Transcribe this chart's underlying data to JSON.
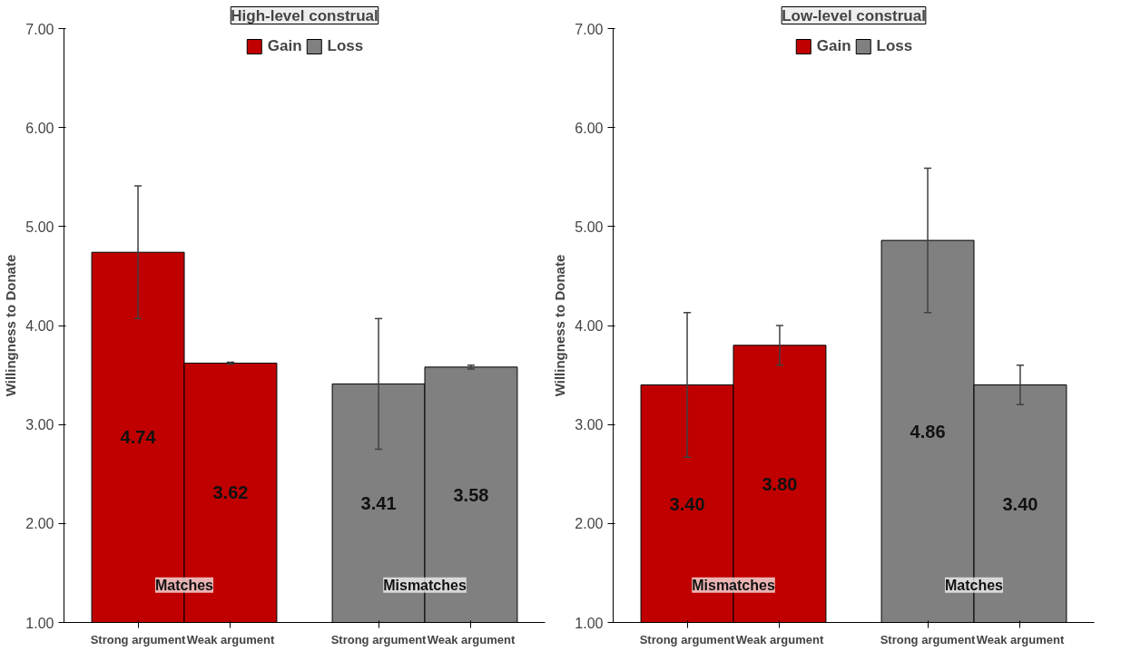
{
  "chart_data": [
    {
      "type": "bar",
      "subtitle": "High-level construal",
      "ylabel": "Willingness to Donate",
      "categories": [
        "Strong argument",
        "Weak argument",
        "Strong argument",
        "Weak argument"
      ],
      "ylim": [
        1,
        7
      ],
      "yticks": [
        {
          "value": 1,
          "label": "1.00"
        },
        {
          "value": 2,
          "label": "2.00"
        },
        {
          "value": 3,
          "label": "3.00"
        },
        {
          "value": 4,
          "label": "4.00"
        },
        {
          "value": 5,
          "label": "5.00"
        },
        {
          "value": 6,
          "label": "6.00"
        },
        {
          "value": 7,
          "label": "7.00"
        }
      ],
      "grid": false,
      "legend": "top",
      "annotations": [
        "Matches",
        "Mismatches"
      ],
      "series": [
        {
          "name": "Gain",
          "color": "#c00000",
          "values": [
            4.74,
            3.62,
            null,
            null
          ],
          "errors": [
            0.67,
            0.01,
            null,
            null
          ],
          "value_labels": [
            "4.74",
            "3.62",
            null,
            null
          ]
        },
        {
          "name": "Loss",
          "color": "#808080",
          "values": [
            null,
            null,
            3.41,
            3.58
          ],
          "errors": [
            null,
            null,
            0.66,
            0.02
          ],
          "value_labels": [
            null,
            null,
            "3.41",
            "3.58"
          ]
        }
      ]
    },
    {
      "type": "bar",
      "subtitle": "Low-level construal",
      "ylabel": "Willingness to Donate",
      "categories": [
        "Strong argument",
        "Weak argument",
        "Strong argument",
        "Weak argument"
      ],
      "ylim": [
        1,
        7
      ],
      "yticks": [
        {
          "value": 1,
          "label": "1.00"
        },
        {
          "value": 2,
          "label": "2.00"
        },
        {
          "value": 3,
          "label": "3.00"
        },
        {
          "value": 4,
          "label": "4.00"
        },
        {
          "value": 5,
          "label": "5.00"
        },
        {
          "value": 6,
          "label": "6.00"
        },
        {
          "value": 7,
          "label": "7.00"
        }
      ],
      "grid": false,
      "legend": "top",
      "annotations": [
        "Mismatches",
        "Matches"
      ],
      "series": [
        {
          "name": "Gain",
          "color": "#c00000",
          "values": [
            3.4,
            3.8,
            null,
            null
          ],
          "errors": [
            0.73,
            0.2,
            null,
            null
          ],
          "value_labels": [
            "3.40",
            "3.80",
            null,
            null
          ]
        },
        {
          "name": "Loss",
          "color": "#808080",
          "values": [
            null,
            null,
            4.86,
            3.4
          ],
          "errors": [
            null,
            null,
            0.73,
            0.2
          ],
          "value_labels": [
            null,
            null,
            "4.86",
            "3.40"
          ]
        }
      ]
    }
  ]
}
